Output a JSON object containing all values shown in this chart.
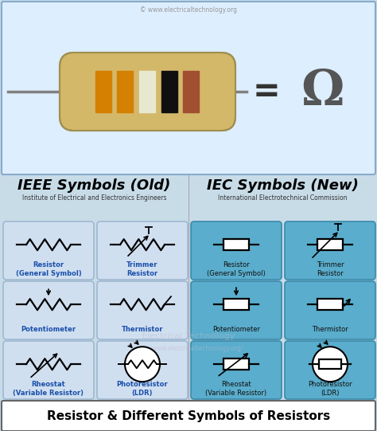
{
  "title": "Resistor & Different Symbols of Resistors",
  "header_url": "© www.electricaltechnology.org",
  "ieee_title": "IEEE Symbols (Old)",
  "iec_title": "IEC Symbols (New)",
  "ieee_subtitle": "Institute of Electrical and Electronics Engineers",
  "iec_subtitle": "International Electrotechnical Commission",
  "bg_color": "#c8dce8",
  "ieee_cell_bg": "#d0dff0",
  "iec_cell_bg": "#5aadcc",
  "ieee_cell_border": "#a0b8d0",
  "iec_cell_border": "#3a8aaa",
  "blue_label": "#1a4faa",
  "dark_text": "#111111",
  "footer_bg": "#ffffff",
  "footer_border": "#666666",
  "top_box_bg": "#ddeeff",
  "top_box_border": "#88aacc",
  "watermark1": "Electrical Technology",
  "watermark2": "http://www.electricaltechnology.org/",
  "cells": [
    {
      "label": "Resistor\n(General Symbol)",
      "type": "ieee_resistor",
      "row": 0,
      "col": 0,
      "label_blue": true
    },
    {
      "label": "Trimmer\nResistor",
      "type": "ieee_trimmer",
      "row": 0,
      "col": 1,
      "label_blue": true
    },
    {
      "label": "Resistor\n(General Symbol)",
      "type": "iec_resistor",
      "row": 0,
      "col": 2,
      "label_blue": false
    },
    {
      "label": "Trimmer\nResistor",
      "type": "iec_trimmer",
      "row": 0,
      "col": 3,
      "label_blue": false
    },
    {
      "label": "Potentiometer",
      "type": "ieee_potentiometer",
      "row": 1,
      "col": 0,
      "label_blue": true
    },
    {
      "label": "Thermistor",
      "type": "ieee_thermistor",
      "row": 1,
      "col": 1,
      "label_blue": true
    },
    {
      "label": "Potentiometer",
      "type": "iec_potentiometer",
      "row": 1,
      "col": 2,
      "label_blue": false
    },
    {
      "label": "Thermistor",
      "type": "iec_thermistor",
      "row": 1,
      "col": 3,
      "label_blue": false
    },
    {
      "label": "Rheostat\n(Variable Resistor)",
      "type": "ieee_rheostat",
      "row": 2,
      "col": 0,
      "label_blue": true
    },
    {
      "label": "Photoresistor\n(LDR)",
      "type": "ieee_photoresistor",
      "row": 2,
      "col": 1,
      "label_blue": true
    },
    {
      "label": "Rheostat\n(Variable Resistor)",
      "type": "iec_rheostat",
      "row": 2,
      "col": 2,
      "label_blue": false
    },
    {
      "label": "Photoresistor\n(LDR)",
      "type": "iec_photoresistor",
      "row": 2,
      "col": 3,
      "label_blue": false
    }
  ]
}
